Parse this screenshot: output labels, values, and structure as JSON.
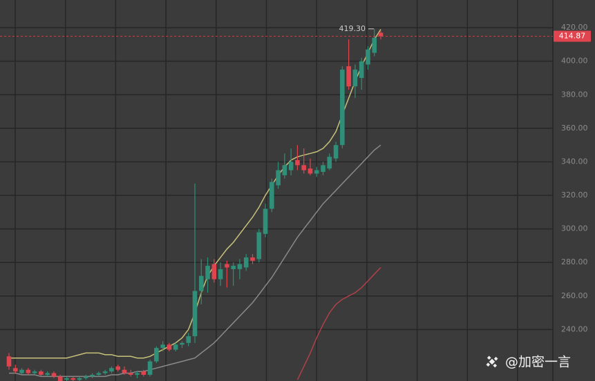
{
  "chart_data": {
    "type": "candlestick",
    "open": [
      224,
      217,
      214,
      216,
      214,
      215,
      213,
      214,
      212,
      210,
      211,
      210,
      211,
      212,
      213,
      214,
      215,
      218,
      216,
      214,
      213,
      215,
      213,
      221,
      229,
      231,
      228,
      231,
      232,
      236,
      263,
      270,
      279,
      270,
      279,
      276,
      276,
      277,
      283,
      282,
      297,
      312,
      326,
      332,
      335,
      341,
      338,
      336,
      333,
      334,
      336,
      342,
      350,
      397,
      385,
      390,
      398,
      405,
      417
    ],
    "high": [
      226,
      219,
      217,
      217,
      216,
      216,
      215,
      215,
      213,
      212,
      212,
      212,
      213,
      214,
      215,
      216,
      218,
      219,
      218,
      216,
      215,
      216,
      222,
      230,
      233,
      232,
      232,
      233,
      238,
      327,
      282,
      283,
      282,
      280,
      281,
      280,
      282,
      285,
      285,
      300,
      315,
      330,
      340,
      345,
      348,
      350,
      348,
      342,
      337,
      340,
      345,
      352,
      397,
      413,
      398,
      402,
      409,
      419.3,
      418
    ],
    "low": [
      216,
      214,
      213,
      213,
      213,
      212,
      212,
      211,
      208,
      209,
      209,
      209,
      210,
      211,
      212,
      213,
      214,
      215,
      213,
      212,
      211,
      212,
      212,
      220,
      227,
      227,
      227,
      229,
      230,
      232,
      255,
      262,
      268,
      266,
      265,
      266,
      270,
      275,
      279,
      280,
      295,
      310,
      324,
      330,
      332,
      335,
      333,
      332,
      331,
      332,
      335,
      340,
      348,
      383,
      378,
      383,
      395,
      403,
      413
    ],
    "close": [
      218,
      215,
      216,
      214,
      215,
      213,
      214,
      212,
      209,
      211,
      210,
      211,
      212,
      213,
      214,
      215,
      217,
      216,
      214,
      213,
      214,
      213,
      221,
      229,
      231,
      228,
      231,
      232,
      236,
      263,
      272,
      278,
      270,
      276,
      277,
      278,
      279,
      283,
      281,
      298,
      312,
      328,
      335,
      338,
      340,
      338,
      335,
      333,
      335,
      338,
      343,
      350,
      395,
      385,
      395,
      400,
      407,
      414,
      414.87
    ],
    "moving_averages": [
      {
        "color": "#c9c27a",
        "values": [
          223,
          223,
          223,
          223,
          223,
          223,
          223,
          223,
          223,
          223,
          224,
          225,
          226,
          226,
          226,
          225,
          225,
          224,
          224,
          224,
          223,
          223,
          224,
          226,
          228,
          230,
          232,
          235,
          240,
          250,
          262,
          272,
          278,
          283,
          288,
          292,
          297,
          302,
          307,
          313,
          320,
          326,
          332,
          337,
          341,
          343,
          344,
          345,
          346,
          348,
          352,
          358,
          368,
          378,
          388,
          397,
          405,
          413,
          419
        ]
      },
      {
        "color": "#8a8a8a",
        "values": [
          214,
          214,
          213,
          213,
          213,
          212,
          212,
          212,
          212,
          212,
          212,
          212,
          212,
          212,
          212,
          212,
          213,
          213,
          214,
          214,
          215,
          215,
          216,
          217,
          218,
          219,
          220,
          221,
          222,
          223,
          226,
          229,
          232,
          236,
          240,
          244,
          248,
          252,
          256,
          261,
          266,
          271,
          277,
          283,
          289,
          295,
          300,
          305,
          310,
          315,
          319,
          323,
          327,
          331,
          335,
          339,
          343,
          347,
          350
        ]
      },
      {
        "color": "#b0404a",
        "values": [
          null,
          null,
          null,
          null,
          null,
          null,
          null,
          null,
          null,
          null,
          null,
          null,
          null,
          null,
          null,
          null,
          null,
          null,
          null,
          null,
          null,
          null,
          null,
          null,
          null,
          null,
          null,
          null,
          null,
          null,
          null,
          null,
          null,
          null,
          null,
          null,
          null,
          null,
          null,
          null,
          null,
          null,
          null,
          null,
          null,
          210,
          218,
          226,
          235,
          243,
          250,
          255,
          258,
          260,
          262,
          265,
          269,
          273,
          277
        ]
      }
    ],
    "up_color": "#2f8f78",
    "down_color": "#e0454f",
    "ylim": [
      209.3,
      436.5
    ],
    "yticks": [
      {
        "value": 240,
        "label": "240.00"
      },
      {
        "value": 260,
        "label": "260.00"
      },
      {
        "value": 280,
        "label": "280.00"
      },
      {
        "value": 300,
        "label": "300.00"
      },
      {
        "value": 320,
        "label": "320.00"
      },
      {
        "value": 340,
        "label": "340.00"
      },
      {
        "value": 360,
        "label": "360.00"
      },
      {
        "value": 380,
        "label": "380.00"
      },
      {
        "value": 400,
        "label": "400.00"
      },
      {
        "value": 420,
        "label": "420.00"
      }
    ],
    "grid": true,
    "last_price": 414.87,
    "max_label": {
      "value": 419.3,
      "label": "419.30"
    },
    "watermark": "@加密一言"
  }
}
